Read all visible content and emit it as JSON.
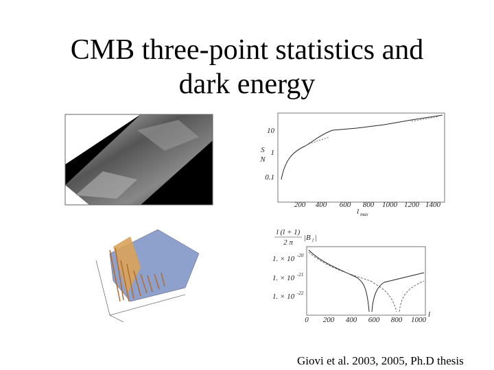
{
  "title": {
    "lines": [
      "CMB three-point statistics and",
      "dark energy"
    ]
  },
  "sn_plot": {
    "y_label_numerator": "S",
    "y_label_denominator": "N",
    "y_tick_labels": [
      "10",
      "1",
      "0.1"
    ],
    "x_tick_labels": [
      200,
      400,
      600,
      800,
      1000,
      1200,
      1400
    ],
    "x_label": "l",
    "x_label_sub": "max"
  },
  "bispectrum_plot": {
    "y_label_top": "l (l + 1)",
    "y_label_bottom": "2 π",
    "y_label_b": "|B",
    "y_label_b_sub": "l",
    "y_label_b_end": "|",
    "y_tick_labels": [
      {
        "mantissa": "1. × 10",
        "exponent": "-20"
      },
      {
        "mantissa": "1. × 10",
        "exponent": "-21"
      },
      {
        "mantissa": "1. × 10",
        "exponent": "-22"
      }
    ],
    "x_tick_labels": [
      0,
      200,
      400,
      600,
      800,
      1000
    ],
    "x_label": "l"
  },
  "caption": "Giovi et al. 2003, 2005, Ph.D thesis"
}
